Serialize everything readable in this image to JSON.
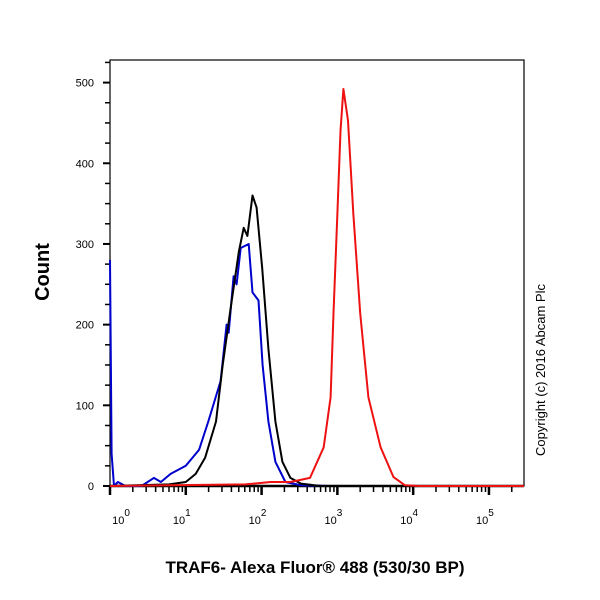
{
  "chart_data": {
    "type": "line",
    "title": "",
    "xlabel": "TRAF6- Alexa Fluor® 488 (530/30 BP)",
    "ylabel": "Count",
    "x_scale": "log",
    "xlim": [
      1,
      290000
    ],
    "ylim": [
      0,
      528
    ],
    "x_ticks": [
      1,
      10,
      100,
      1000,
      10000,
      100000
    ],
    "x_tick_labels": [
      {
        "base": "10",
        "exp": "0"
      },
      {
        "base": "10",
        "exp": "1"
      },
      {
        "base": "10",
        "exp": "2"
      },
      {
        "base": "10",
        "exp": "3"
      },
      {
        "base": "10",
        "exp": "4"
      },
      {
        "base": "10",
        "exp": "5"
      }
    ],
    "y_ticks": [
      0,
      100,
      200,
      300,
      400,
      500
    ],
    "y_tick_labels": [
      "0",
      "100",
      "200",
      "300",
      "400",
      "500"
    ],
    "grid": false,
    "annotation": "Copyright (c) 2016 Abcam Plc",
    "series": [
      {
        "color": "#0000cc",
        "x": [
          1.0,
          1.05,
          1.13,
          1.27,
          1.6,
          2.6,
          3.8,
          4.7,
          6.3,
          10,
          15,
          19.8,
          28.8,
          34.6,
          36.8,
          42.8,
          46.8,
          53,
          67.6,
          76,
          91,
          103,
          123,
          152,
          206,
          330,
          810,
          290000
        ],
        "y": [
          280,
          40,
          0,
          5,
          0,
          0,
          10,
          5,
          15,
          25,
          45,
          80,
          130,
          200,
          190,
          260,
          250,
          295,
          300,
          240,
          230,
          150,
          80,
          30,
          5,
          1,
          0,
          0
        ]
      },
      {
        "color": "#000000",
        "x": [
          1,
          6,
          10,
          13.5,
          18,
          25,
          30.7,
          39,
          50,
          58,
          65,
          76,
          86,
          102,
          123,
          152,
          188,
          240,
          330,
          600,
          290000
        ],
        "y": [
          0,
          2,
          5,
          15,
          35,
          80,
          150,
          220,
          290,
          320,
          310,
          360,
          345,
          270,
          170,
          80,
          30,
          10,
          3,
          0,
          0
        ]
      },
      {
        "color": "#ee1111",
        "x": [
          1,
          61,
          131,
          240,
          436,
          660,
          813,
          890,
          1000,
          1100,
          1200,
          1380,
          1620,
          2000,
          2570,
          3720,
          5500,
          7760,
          12300,
          290000
        ],
        "y": [
          0,
          2,
          5,
          5,
          10,
          48,
          110,
          214,
          338,
          440,
          492,
          453,
          338,
          214,
          110,
          48,
          11,
          1,
          0,
          0
        ]
      }
    ]
  }
}
